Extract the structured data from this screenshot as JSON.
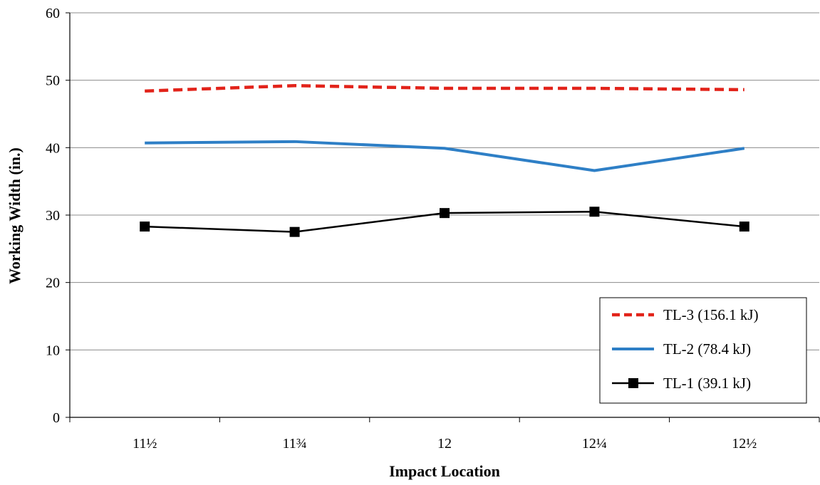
{
  "chart_data": {
    "type": "line",
    "title": "",
    "xlabel": "Impact Location",
    "ylabel": "Working Width (in.)",
    "ylim": [
      0,
      60
    ],
    "yticks": [
      "0",
      "10",
      "20",
      "30",
      "40",
      "50",
      "60"
    ],
    "categories": [
      "11½",
      "11¾",
      "12",
      "12¼",
      "12½"
    ],
    "grid": "horizontal",
    "legend_position": "bottom-right",
    "series": [
      {
        "name": "TL-3 (156.1 kJ)",
        "values": [
          48.4,
          49.2,
          48.8,
          48.8,
          48.6
        ],
        "color": "#e2231a",
        "style": "dashed",
        "marker": "none"
      },
      {
        "name": "TL-2 (78.4 kJ)",
        "values": [
          40.7,
          40.9,
          39.9,
          36.6,
          39.9
        ],
        "color": "#2e7fc6",
        "style": "solid",
        "marker": "none"
      },
      {
        "name": "TL-1 (39.1 kJ)",
        "values": [
          28.3,
          27.5,
          30.3,
          30.5,
          28.3
        ],
        "color": "#000000",
        "style": "solid",
        "marker": "square"
      }
    ]
  }
}
